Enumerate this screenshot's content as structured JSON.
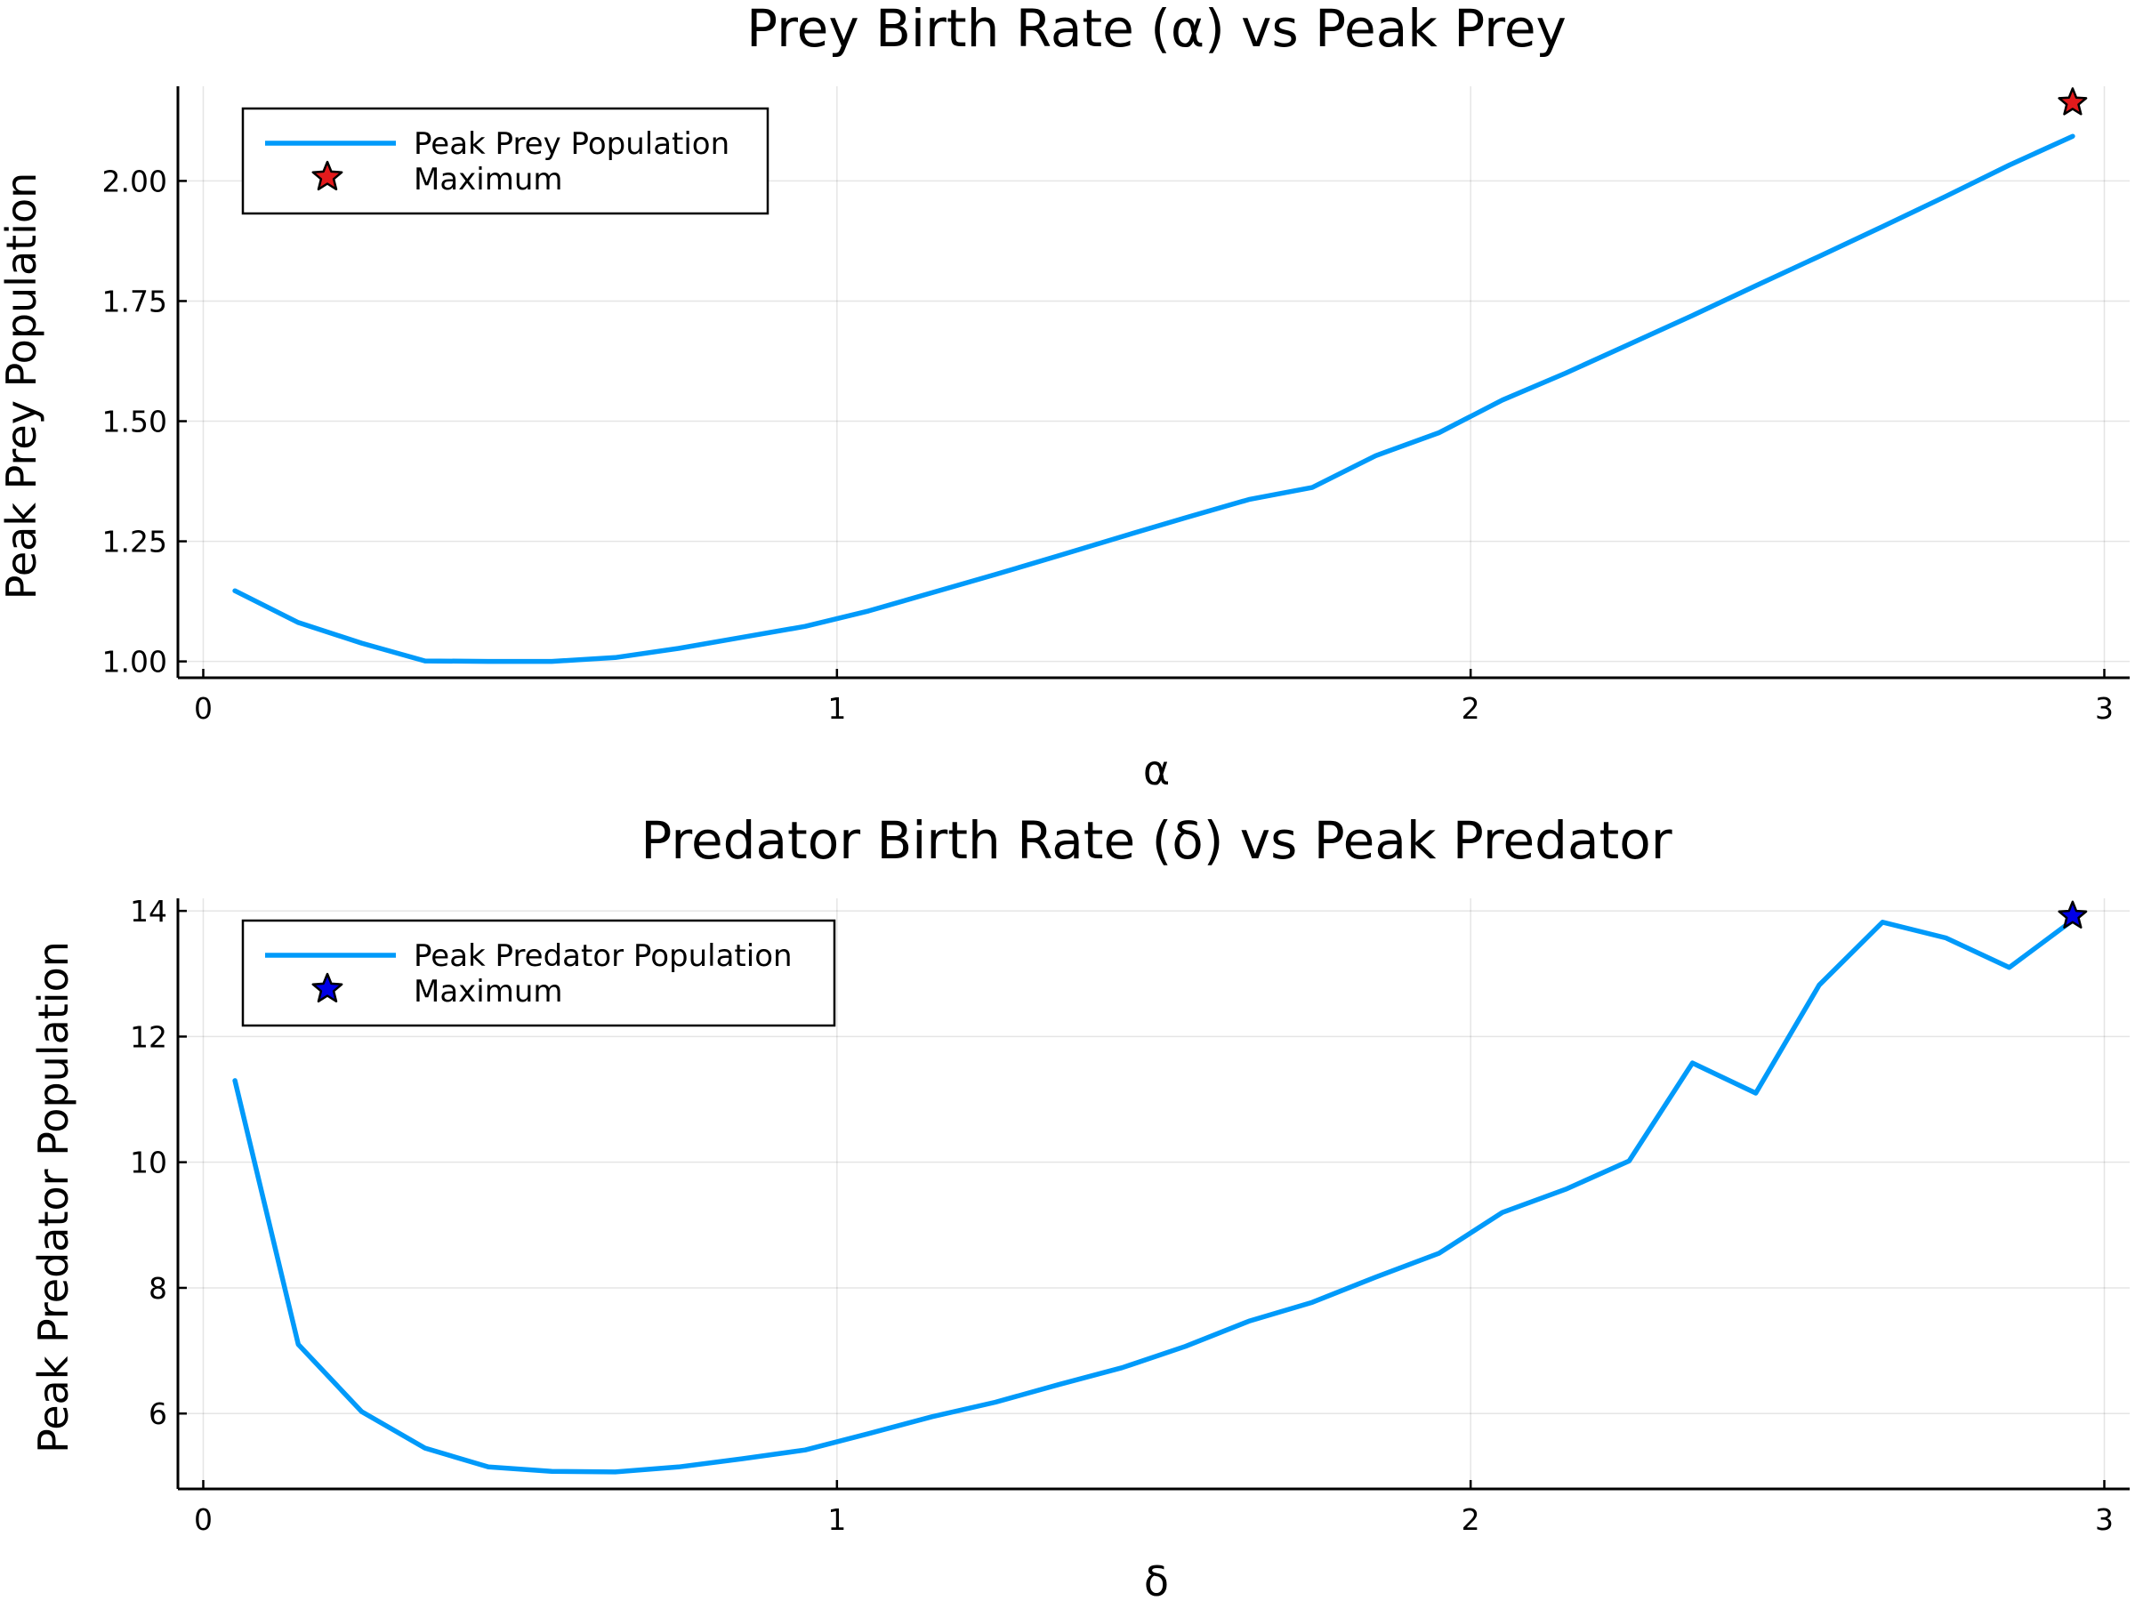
{
  "chart_data": [
    {
      "type": "line",
      "title": "Prey Birth Rate (α) vs Peak Prey",
      "xlabel": "α",
      "ylabel": "Peak Prey Population",
      "xlim": [
        -0.04,
        3.04
      ],
      "ylim": [
        0.966,
        2.197
      ],
      "xticks": [
        0,
        1,
        2,
        3
      ],
      "xtick_labels": [
        "0",
        "1",
        "2",
        "3"
      ],
      "yticks": [
        1.0,
        1.25,
        1.5,
        1.75,
        2.0
      ],
      "ytick_labels": [
        "1.00",
        "1.25",
        "1.50",
        "1.75",
        "2.00"
      ],
      "grid": true,
      "legend_position": "top-left",
      "series": [
        {
          "name": "Peak Prey Population",
          "color": "#009AFA",
          "x": [
            0.05,
            0.15,
            0.25,
            0.35,
            0.45,
            0.55,
            0.65,
            0.75,
            0.85,
            0.95,
            1.05,
            1.15,
            1.25,
            1.35,
            1.45,
            1.55,
            1.65,
            1.75,
            1.85,
            1.95,
            2.05,
            2.15,
            2.25,
            2.35,
            2.45,
            2.55,
            2.65,
            2.75,
            2.85,
            2.95
          ],
          "y": [
            1.147,
            1.081,
            1.038,
            1.001,
            1.0,
            1.0,
            1.008,
            1.027,
            1.05,
            1.073,
            1.105,
            1.143,
            1.181,
            1.22,
            1.26,
            1.299,
            1.337,
            1.362,
            1.428,
            1.476,
            1.544,
            1.6,
            1.66,
            1.72,
            1.782,
            1.843,
            1.905,
            1.968,
            2.033,
            2.093
          ]
        }
      ],
      "marker": {
        "name": "Maximum",
        "x": 2.95,
        "y": 2.163,
        "color": "#E31A1C",
        "shape": "star"
      }
    },
    {
      "type": "line",
      "title": "Predator Birth Rate (δ) vs Peak Predator",
      "xlabel": "δ",
      "ylabel": "Peak Predator Population",
      "xlim": [
        -0.04,
        3.04
      ],
      "ylim": [
        4.8,
        14.2
      ],
      "xticks": [
        0,
        1,
        2,
        3
      ],
      "xtick_labels": [
        "0",
        "1",
        "2",
        "3"
      ],
      "yticks": [
        6,
        8,
        10,
        12,
        14
      ],
      "ytick_labels": [
        "6",
        "8",
        "10",
        "12",
        "14"
      ],
      "grid": true,
      "legend_position": "top-left",
      "series": [
        {
          "name": "Peak Predator Population",
          "color": "#009AFA",
          "x": [
            0.05,
            0.15,
            0.25,
            0.35,
            0.45,
            0.55,
            0.65,
            0.75,
            0.85,
            0.95,
            1.05,
            1.15,
            1.25,
            1.35,
            1.45,
            1.55,
            1.65,
            1.75,
            1.85,
            1.95,
            2.05,
            2.15,
            2.25,
            2.35,
            2.45,
            2.55,
            2.65,
            2.75,
            2.85,
            2.95
          ],
          "y": [
            11.3,
            7.1,
            6.03,
            5.45,
            5.15,
            5.08,
            5.07,
            5.15,
            5.28,
            5.42,
            5.68,
            5.95,
            6.18,
            6.46,
            6.73,
            7.07,
            7.47,
            7.77,
            8.17,
            8.55,
            9.2,
            9.57,
            10.02,
            11.58,
            11.1,
            12.82,
            13.82,
            13.57,
            13.1,
            13.85
          ]
        }
      ],
      "marker": {
        "name": "Maximum",
        "x": 2.95,
        "y": 13.92,
        "color": "#0000E6",
        "shape": "star"
      }
    }
  ]
}
